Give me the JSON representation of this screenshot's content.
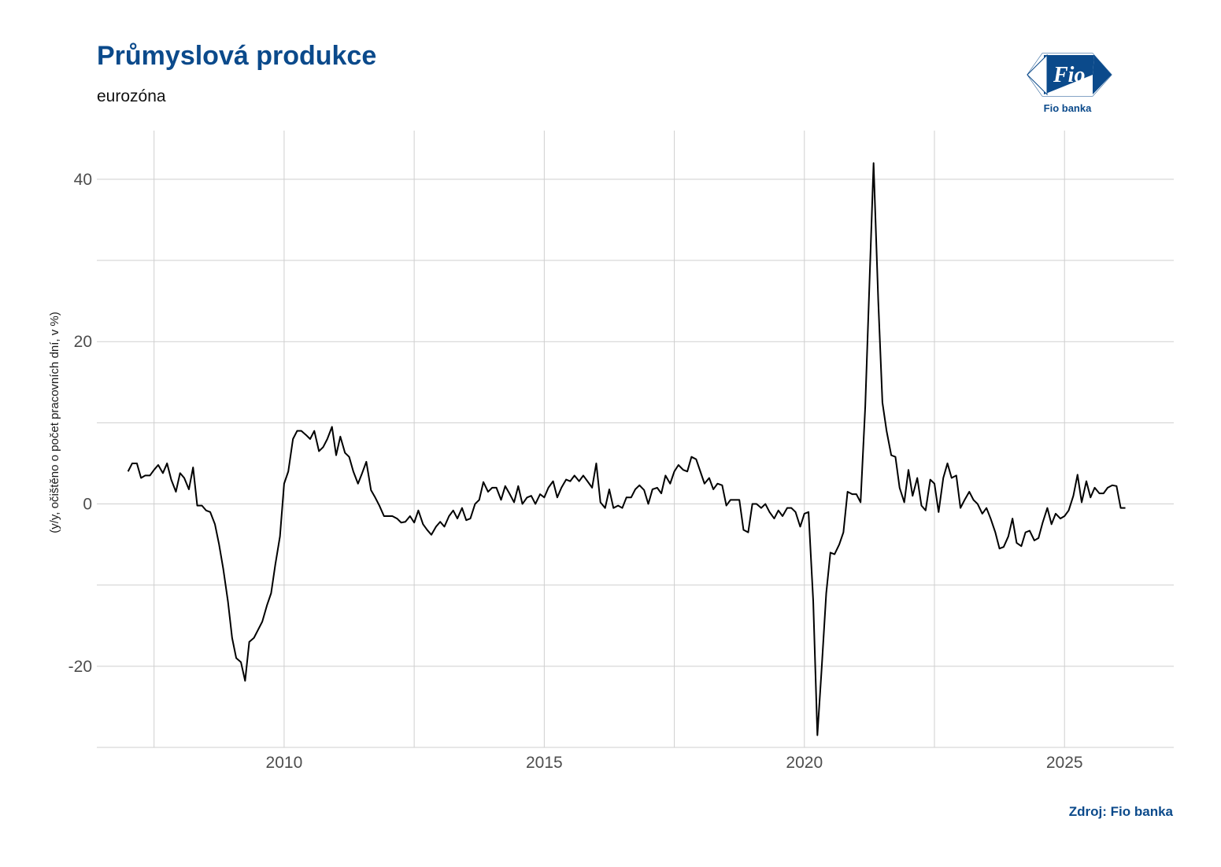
{
  "header": {
    "title": "Průmyslová produkce",
    "subtitle": "eurozóna"
  },
  "logo": {
    "icon": "fio-banka-logo",
    "text": "Fio",
    "name": "Fio banka"
  },
  "footer": {
    "source": "Zdroj: Fio banka"
  },
  "colors": {
    "title": "#0b4a8b",
    "line": "#000000",
    "grid": "#cfcfcf"
  },
  "chart_data": {
    "type": "line",
    "title": "Průmyslová produkce",
    "subtitle": "eurozóna",
    "xlabel": "",
    "ylabel": "(y/y, očištěno o počet pracovních dní, v %)",
    "xlim": [
      2006.4,
      2027.1
    ],
    "ylim": [
      -30,
      46
    ],
    "x_ticks": [
      2010,
      2015,
      2020,
      2025
    ],
    "y_ticks": [
      -20,
      0,
      20,
      40
    ],
    "grid": true,
    "legend": "none",
    "series": [
      {
        "color": "#000000",
        "points": [
          [
            2007.0,
            4.0
          ],
          [
            2007.08,
            5.0
          ],
          [
            2007.17,
            5.0
          ],
          [
            2007.25,
            3.2
          ],
          [
            2007.33,
            3.5
          ],
          [
            2007.42,
            3.5
          ],
          [
            2007.5,
            4.2
          ],
          [
            2007.58,
            4.8
          ],
          [
            2007.67,
            3.8
          ],
          [
            2007.75,
            5.0
          ],
          [
            2007.83,
            3.0
          ],
          [
            2007.92,
            1.5
          ],
          [
            2008.0,
            3.8
          ],
          [
            2008.08,
            3.2
          ],
          [
            2008.17,
            1.8
          ],
          [
            2008.25,
            4.5
          ],
          [
            2008.33,
            -0.2
          ],
          [
            2008.42,
            -0.2
          ],
          [
            2008.5,
            -0.8
          ],
          [
            2008.58,
            -1.0
          ],
          [
            2008.67,
            -2.5
          ],
          [
            2008.75,
            -5.0
          ],
          [
            2008.83,
            -8.0
          ],
          [
            2008.92,
            -12.0
          ],
          [
            2009.0,
            -16.5
          ],
          [
            2009.08,
            -19.0
          ],
          [
            2009.17,
            -19.5
          ],
          [
            2009.25,
            -21.8
          ],
          [
            2009.33,
            -17.0
          ],
          [
            2009.42,
            -16.5
          ],
          [
            2009.5,
            -15.5
          ],
          [
            2009.58,
            -14.5
          ],
          [
            2009.67,
            -12.5
          ],
          [
            2009.75,
            -11.0
          ],
          [
            2009.83,
            -7.5
          ],
          [
            2009.92,
            -4.0
          ],
          [
            2010.0,
            2.5
          ],
          [
            2010.08,
            4.0
          ],
          [
            2010.17,
            8.0
          ],
          [
            2010.25,
            9.0
          ],
          [
            2010.33,
            9.0
          ],
          [
            2010.42,
            8.5
          ],
          [
            2010.5,
            8.0
          ],
          [
            2010.58,
            9.0
          ],
          [
            2010.67,
            6.5
          ],
          [
            2010.75,
            7.0
          ],
          [
            2010.83,
            8.0
          ],
          [
            2010.92,
            9.5
          ],
          [
            2011.0,
            6.0
          ],
          [
            2011.08,
            8.3
          ],
          [
            2011.17,
            6.3
          ],
          [
            2011.25,
            5.8
          ],
          [
            2011.33,
            4.0
          ],
          [
            2011.42,
            2.5
          ],
          [
            2011.5,
            3.8
          ],
          [
            2011.58,
            5.2
          ],
          [
            2011.67,
            1.7
          ],
          [
            2011.75,
            0.8
          ],
          [
            2011.83,
            -0.2
          ],
          [
            2011.92,
            -1.5
          ],
          [
            2012.0,
            -1.5
          ],
          [
            2012.08,
            -1.5
          ],
          [
            2012.17,
            -1.8
          ],
          [
            2012.25,
            -2.3
          ],
          [
            2012.33,
            -2.2
          ],
          [
            2012.42,
            -1.5
          ],
          [
            2012.5,
            -2.3
          ],
          [
            2012.58,
            -0.8
          ],
          [
            2012.67,
            -2.5
          ],
          [
            2012.75,
            -3.2
          ],
          [
            2012.83,
            -3.8
          ],
          [
            2012.92,
            -2.8
          ],
          [
            2013.0,
            -2.2
          ],
          [
            2013.08,
            -2.8
          ],
          [
            2013.17,
            -1.5
          ],
          [
            2013.25,
            -0.8
          ],
          [
            2013.33,
            -1.8
          ],
          [
            2013.42,
            -0.5
          ],
          [
            2013.5,
            -2.0
          ],
          [
            2013.58,
            -1.8
          ],
          [
            2013.67,
            0.0
          ],
          [
            2013.75,
            0.5
          ],
          [
            2013.83,
            2.7
          ],
          [
            2013.92,
            1.5
          ],
          [
            2014.0,
            2.0
          ],
          [
            2014.08,
            2.0
          ],
          [
            2014.17,
            0.5
          ],
          [
            2014.25,
            2.2
          ],
          [
            2014.33,
            1.3
          ],
          [
            2014.42,
            0.2
          ],
          [
            2014.5,
            2.2
          ],
          [
            2014.58,
            0.0
          ],
          [
            2014.67,
            0.8
          ],
          [
            2014.75,
            1.0
          ],
          [
            2014.83,
            0.0
          ],
          [
            2014.92,
            1.2
          ],
          [
            2015.0,
            0.8
          ],
          [
            2015.08,
            2.0
          ],
          [
            2015.17,
            2.8
          ],
          [
            2015.25,
            0.8
          ],
          [
            2015.33,
            2.0
          ],
          [
            2015.42,
            3.0
          ],
          [
            2015.5,
            2.8
          ],
          [
            2015.58,
            3.5
          ],
          [
            2015.67,
            2.8
          ],
          [
            2015.75,
            3.5
          ],
          [
            2015.83,
            2.8
          ],
          [
            2015.92,
            2.0
          ],
          [
            2016.0,
            5.0
          ],
          [
            2016.08,
            0.2
          ],
          [
            2016.17,
            -0.5
          ],
          [
            2016.25,
            1.8
          ],
          [
            2016.33,
            -0.5
          ],
          [
            2016.42,
            -0.2
          ],
          [
            2016.5,
            -0.5
          ],
          [
            2016.58,
            0.8
          ],
          [
            2016.67,
            0.8
          ],
          [
            2016.75,
            1.8
          ],
          [
            2016.83,
            2.3
          ],
          [
            2016.92,
            1.7
          ],
          [
            2017.0,
            0.0
          ],
          [
            2017.08,
            1.8
          ],
          [
            2017.17,
            2.0
          ],
          [
            2017.25,
            1.3
          ],
          [
            2017.33,
            3.5
          ],
          [
            2017.42,
            2.5
          ],
          [
            2017.5,
            4.0
          ],
          [
            2017.58,
            4.8
          ],
          [
            2017.67,
            4.2
          ],
          [
            2017.75,
            4.0
          ],
          [
            2017.83,
            5.8
          ],
          [
            2017.92,
            5.5
          ],
          [
            2018.0,
            4.0
          ],
          [
            2018.08,
            2.5
          ],
          [
            2018.17,
            3.2
          ],
          [
            2018.25,
            1.8
          ],
          [
            2018.33,
            2.5
          ],
          [
            2018.42,
            2.3
          ],
          [
            2018.5,
            -0.2
          ],
          [
            2018.58,
            0.5
          ],
          [
            2018.67,
            0.5
          ],
          [
            2018.75,
            0.5
          ],
          [
            2018.83,
            -3.2
          ],
          [
            2018.92,
            -3.5
          ],
          [
            2019.0,
            0.0
          ],
          [
            2019.08,
            0.0
          ],
          [
            2019.17,
            -0.5
          ],
          [
            2019.25,
            0.0
          ],
          [
            2019.33,
            -1.0
          ],
          [
            2019.42,
            -1.8
          ],
          [
            2019.5,
            -0.8
          ],
          [
            2019.58,
            -1.5
          ],
          [
            2019.67,
            -0.5
          ],
          [
            2019.75,
            -0.5
          ],
          [
            2019.83,
            -1.0
          ],
          [
            2019.92,
            -2.8
          ],
          [
            2020.0,
            -1.2
          ],
          [
            2020.08,
            -1.0
          ],
          [
            2020.17,
            -12.0
          ],
          [
            2020.25,
            -28.5
          ],
          [
            2020.33,
            -20.5
          ],
          [
            2020.42,
            -11.0
          ],
          [
            2020.5,
            -6.0
          ],
          [
            2020.58,
            -6.2
          ],
          [
            2020.67,
            -5.0
          ],
          [
            2020.75,
            -3.5
          ],
          [
            2020.83,
            1.5
          ],
          [
            2020.92,
            1.2
          ],
          [
            2021.0,
            1.2
          ],
          [
            2021.08,
            0.2
          ],
          [
            2021.17,
            12.0
          ],
          [
            2021.25,
            27.0
          ],
          [
            2021.33,
            42.0
          ],
          [
            2021.42,
            25.0
          ],
          [
            2021.5,
            12.5
          ],
          [
            2021.58,
            9.0
          ],
          [
            2021.67,
            6.0
          ],
          [
            2021.75,
            5.8
          ],
          [
            2021.83,
            2.0
          ],
          [
            2021.92,
            0.2
          ],
          [
            2022.0,
            4.2
          ],
          [
            2022.08,
            1.0
          ],
          [
            2022.17,
            3.2
          ],
          [
            2022.25,
            -0.2
          ],
          [
            2022.33,
            -0.8
          ],
          [
            2022.42,
            3.0
          ],
          [
            2022.5,
            2.5
          ],
          [
            2022.58,
            -1.0
          ],
          [
            2022.67,
            3.2
          ],
          [
            2022.75,
            5.0
          ],
          [
            2022.83,
            3.2
          ],
          [
            2022.92,
            3.5
          ],
          [
            2023.0,
            -0.5
          ],
          [
            2023.08,
            0.5
          ],
          [
            2023.17,
            1.5
          ],
          [
            2023.25,
            0.5
          ],
          [
            2023.33,
            0.0
          ],
          [
            2023.42,
            -1.2
          ],
          [
            2023.5,
            -0.5
          ],
          [
            2023.58,
            -1.8
          ],
          [
            2023.67,
            -3.5
          ],
          [
            2023.75,
            -5.5
          ],
          [
            2023.83,
            -5.3
          ],
          [
            2023.92,
            -4.0
          ],
          [
            2024.0,
            -1.8
          ],
          [
            2024.08,
            -4.8
          ],
          [
            2024.17,
            -5.2
          ],
          [
            2024.25,
            -3.5
          ],
          [
            2024.33,
            -3.3
          ],
          [
            2024.42,
            -4.5
          ],
          [
            2024.5,
            -4.2
          ],
          [
            2024.58,
            -2.3
          ],
          [
            2024.67,
            -0.5
          ],
          [
            2024.75,
            -2.5
          ],
          [
            2024.83,
            -1.2
          ],
          [
            2024.92,
            -1.8
          ],
          [
            2025.0,
            -1.5
          ],
          [
            2025.08,
            -0.8
          ],
          [
            2025.17,
            1.0
          ],
          [
            2025.25,
            3.6
          ],
          [
            2025.33,
            0.2
          ],
          [
            2025.42,
            2.8
          ],
          [
            2025.5,
            0.8
          ],
          [
            2025.58,
            2.0
          ],
          [
            2025.67,
            1.3
          ],
          [
            2025.75,
            1.3
          ],
          [
            2025.83,
            2.0
          ],
          [
            2025.92,
            2.3
          ],
          [
            2026.0,
            2.2
          ],
          [
            2026.08,
            -0.5
          ],
          [
            2026.17,
            -0.5
          ]
        ]
      }
    ]
  }
}
